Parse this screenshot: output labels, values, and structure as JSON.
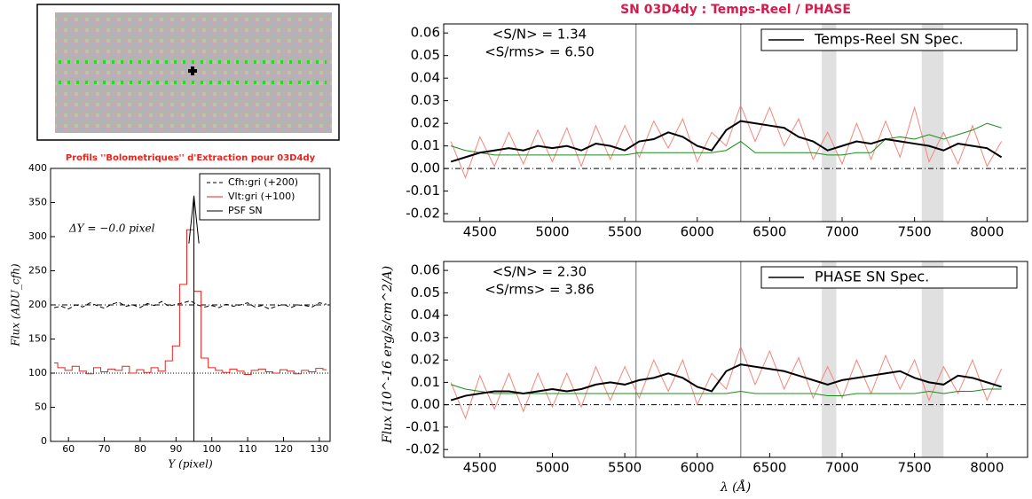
{
  "chart_data": [
    {
      "type": "line",
      "title": "Profils ''Bolometriques'' d'Extraction pour 03D4dy",
      "xlabel": "Y (pixel)",
      "ylabel": "Flux (ADU_cfh)",
      "annotations": [
        "ΔY = −0.0 pixel"
      ],
      "xlim": [
        55,
        133
      ],
      "ylim": [
        0,
        400
      ],
      "xticks": [
        60,
        70,
        80,
        90,
        100,
        110,
        120,
        130
      ],
      "yticks": [
        0,
        50,
        100,
        150,
        200,
        250,
        300,
        350,
        400
      ],
      "hlines": [
        100,
        200
      ],
      "legend": "upper right",
      "x": [
        56,
        58,
        60,
        62,
        64,
        66,
        68,
        70,
        72,
        74,
        76,
        78,
        80,
        82,
        84,
        86,
        88,
        90,
        92,
        94,
        96,
        98,
        100,
        102,
        104,
        106,
        108,
        110,
        112,
        114,
        116,
        118,
        120,
        122,
        124,
        126,
        128,
        130,
        132
      ],
      "series": [
        {
          "name": "Cfh:gri (+200)",
          "color": "#000000",
          "dash": true,
          "values": [
            196,
            198,
            194,
            200,
            197,
            203,
            199,
            195,
            201,
            204,
            198,
            200,
            196,
            202,
            199,
            205,
            198,
            201,
            203,
            206,
            200,
            197,
            199,
            196,
            201,
            198,
            200,
            203,
            197,
            199,
            194,
            198,
            201,
            196,
            200,
            199,
            197,
            203,
            201
          ]
        },
        {
          "name": "Vlt:gri (+100)",
          "color": "#e8231c",
          "step": true,
          "values": [
            115,
            108,
            104,
            110,
            103,
            99,
            108,
            102,
            106,
            104,
            110,
            100,
            105,
            101,
            108,
            103,
            118,
            140,
            230,
            310,
            220,
            122,
            108,
            104,
            101,
            106,
            103,
            98,
            104,
            106,
            102,
            100,
            105,
            103,
            99,
            104,
            102,
            107,
            105
          ]
        },
        {
          "name": "PSF SN",
          "color": "#000000",
          "x": [
            93.6,
            95,
            95,
            95,
            96.4
          ],
          "values": [
            290,
            360,
            0,
            360,
            290
          ]
        }
      ]
    },
    {
      "type": "line",
      "title": "SN 03D4dy : Temps-Reel / PHASE",
      "annotations": [
        "<S/N> = 1.34",
        "<S/rms> = 6.50"
      ],
      "xlim": [
        4250,
        8280
      ],
      "ylim": [
        -0.0235,
        0.064
      ],
      "xticks": [
        4500,
        5000,
        5500,
        6000,
        6500,
        7000,
        7500,
        8000
      ],
      "yticks": [
        -0.02,
        -0.01,
        {
          "value": 0,
          "label": "0.00"
        },
        0.01,
        0.02,
        0.03,
        0.04,
        0.05,
        0.06
      ],
      "hlines": [
        0
      ],
      "vlines": [
        5577,
        6300
      ],
      "bands": [
        [
          6860,
          6960
        ],
        [
          7550,
          7700
        ]
      ],
      "legend": "upper right",
      "x": [
        4300,
        4400,
        4500,
        4600,
        4700,
        4800,
        4900,
        5000,
        5100,
        5200,
        5300,
        5400,
        5500,
        5600,
        5700,
        5800,
        5900,
        6000,
        6100,
        6200,
        6300,
        6400,
        6500,
        6600,
        6700,
        6800,
        6900,
        7000,
        7100,
        7200,
        7300,
        7400,
        7500,
        7600,
        7700,
        7800,
        7900,
        8000,
        8100
      ],
      "series": [
        {
          "color": "#f4857a",
          "values": [
            0.012,
            -0.004,
            0.014,
            0.001,
            0.016,
            0.002,
            0.017,
            0.003,
            0.018,
            0.001,
            0.019,
            0.004,
            0.019,
            0.005,
            0.021,
            0.009,
            0.022,
            0.003,
            0.016,
            0.01,
            0.028,
            0.012,
            0.027,
            0.01,
            0.022,
            0.004,
            0.016,
            0.002,
            0.02,
            0.004,
            0.021,
            0.005,
            0.027,
            0.003,
            0.016,
            0.002,
            0.019,
            0.001,
            0.012
          ]
        },
        {
          "color": "#1a8c1a",
          "values": [
            0.01,
            0.008,
            0.007,
            0.006,
            0.006,
            0.006,
            0.006,
            0.006,
            0.006,
            0.006,
            0.006,
            0.006,
            0.006,
            0.007,
            0.007,
            0.007,
            0.007,
            0.007,
            0.007,
            0.008,
            0.012,
            0.007,
            0.007,
            0.007,
            0.007,
            0.007,
            0.006,
            0.006,
            0.007,
            0.007,
            0.013,
            0.014,
            0.013,
            0.015,
            0.013,
            0.015,
            0.017,
            0.02,
            0.018
          ]
        },
        {
          "name": "Temps-Reel SN Spec.",
          "color": "#000000",
          "width": 2,
          "values": [
            0.003,
            0.005,
            0.007,
            0.008,
            0.009,
            0.008,
            0.01,
            0.009,
            0.01,
            0.008,
            0.011,
            0.01,
            0.008,
            0.012,
            0.013,
            0.016,
            0.014,
            0.01,
            0.008,
            0.017,
            0.021,
            0.02,
            0.019,
            0.018,
            0.014,
            0.012,
            0.008,
            0.01,
            0.012,
            0.011,
            0.013,
            0.012,
            0.011,
            0.01,
            0.008,
            0.011,
            0.01,
            0.009,
            0.005
          ]
        }
      ]
    },
    {
      "type": "line",
      "xlabel": "λ (Å)",
      "ylabel": "Flux (10^-16 erg/s/cm^2/A)",
      "annotations": [
        "<S/N> = 2.30",
        "<S/rms> = 3.86"
      ],
      "xlim": [
        4250,
        8280
      ],
      "ylim": [
        -0.0235,
        0.064
      ],
      "xticks": [
        4500,
        5000,
        5500,
        6000,
        6500,
        7000,
        7500,
        8000
      ],
      "yticks": [
        -0.02,
        -0.01,
        {
          "value": 0,
          "label": "0.00"
        },
        0.01,
        0.02,
        0.03,
        0.04,
        0.05,
        0.06
      ],
      "hlines": [
        0
      ],
      "vlines": [
        5577,
        6300
      ],
      "bands": [
        [
          6860,
          6960
        ],
        [
          7550,
          7700
        ]
      ],
      "legend": "upper right",
      "x": [
        4300,
        4400,
        4500,
        4600,
        4700,
        4800,
        4900,
        5000,
        5100,
        5200,
        5300,
        5400,
        5500,
        5600,
        5700,
        5800,
        5900,
        6000,
        6100,
        6200,
        6300,
        6400,
        6500,
        6600,
        6700,
        6800,
        6900,
        7000,
        7100,
        7200,
        7300,
        7400,
        7500,
        7600,
        7700,
        7800,
        7900,
        8000,
        8100
      ],
      "series": [
        {
          "color": "#f4857a",
          "values": [
            0.01,
            -0.006,
            0.013,
            -0.002,
            0.014,
            -0.003,
            0.014,
            -0.001,
            0.014,
            -0.001,
            0.017,
            0.002,
            0.017,
            0.003,
            0.02,
            0.006,
            0.02,
            0.0,
            0.014,
            0.007,
            0.026,
            0.009,
            0.024,
            0.007,
            0.021,
            0.003,
            0.017,
            0.003,
            0.02,
            0.005,
            0.022,
            0.007,
            0.02,
            0.002,
            0.017,
            0.005,
            0.02,
            0.002,
            0.016
          ]
        },
        {
          "color": "#1a8c1a",
          "values": [
            0.009,
            0.007,
            0.006,
            0.005,
            0.005,
            0.005,
            0.005,
            0.005,
            0.005,
            0.005,
            0.005,
            0.005,
            0.005,
            0.005,
            0.005,
            0.005,
            0.005,
            0.005,
            0.005,
            0.005,
            0.006,
            0.005,
            0.005,
            0.005,
            0.005,
            0.005,
            0.004,
            0.004,
            0.005,
            0.005,
            0.005,
            0.005,
            0.005,
            0.006,
            0.005,
            0.006,
            0.006,
            0.007,
            0.007
          ]
        },
        {
          "name": "PHASE SN Spec.",
          "color": "#000000",
          "width": 2,
          "values": [
            0.002,
            0.004,
            0.005,
            0.006,
            0.006,
            0.005,
            0.006,
            0.007,
            0.006,
            0.007,
            0.009,
            0.01,
            0.009,
            0.011,
            0.012,
            0.014,
            0.012,
            0.008,
            0.006,
            0.015,
            0.018,
            0.017,
            0.016,
            0.015,
            0.013,
            0.011,
            0.009,
            0.011,
            0.012,
            0.013,
            0.014,
            0.015,
            0.012,
            0.01,
            0.009,
            0.013,
            0.012,
            0.01,
            0.008
          ]
        }
      ]
    }
  ]
}
